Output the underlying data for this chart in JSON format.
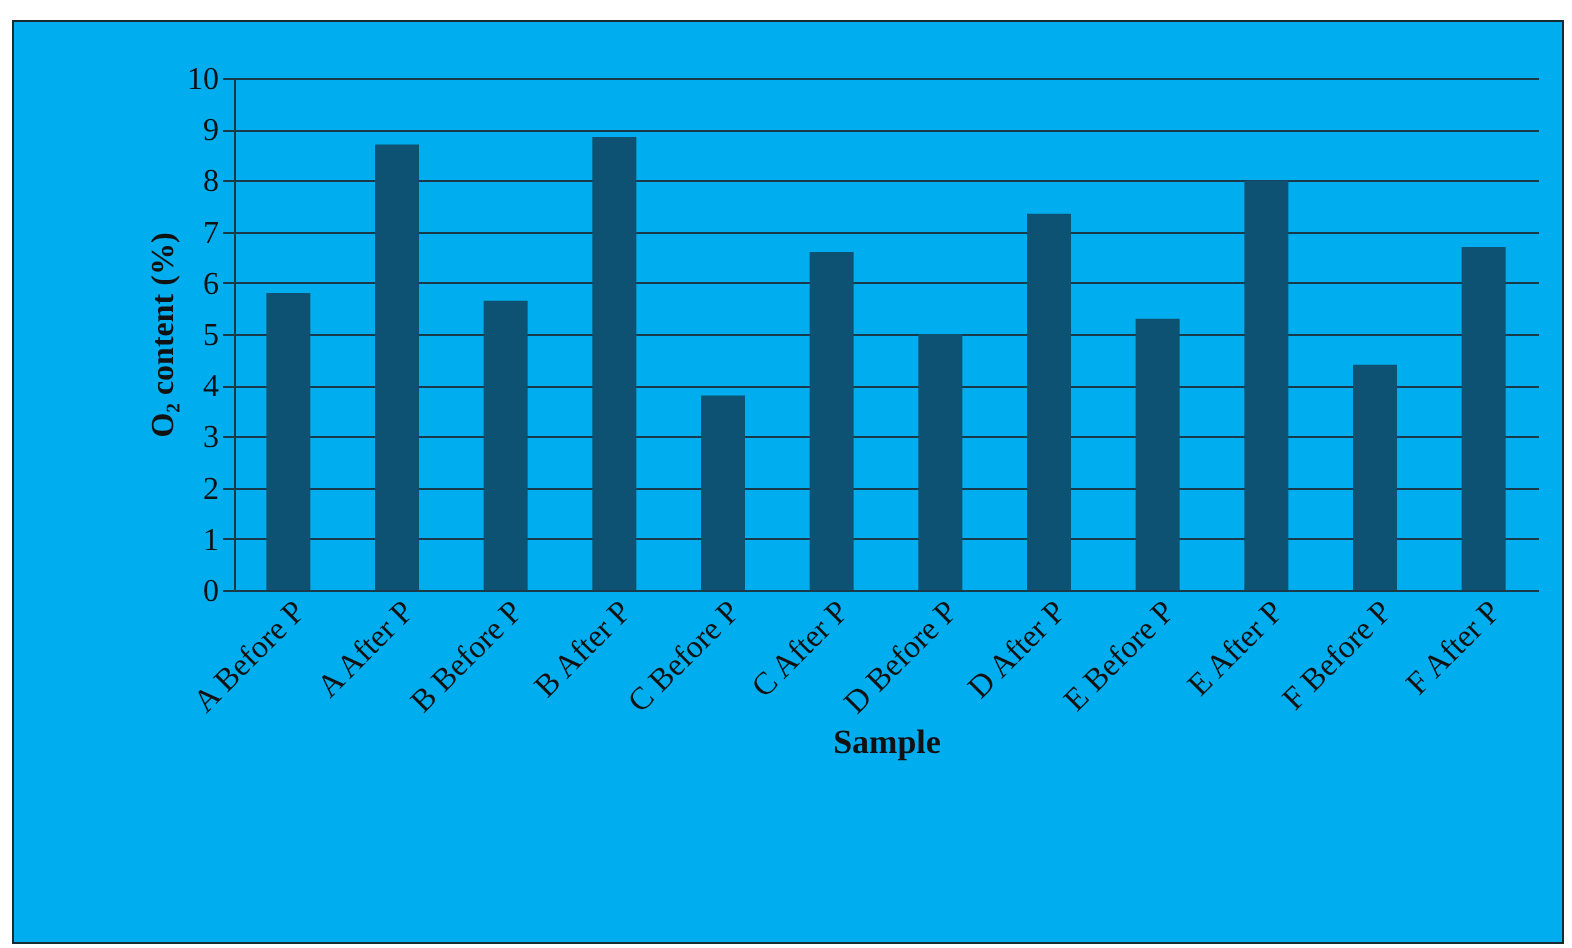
{
  "chart_data": {
    "type": "bar",
    "xlabel": "Sample",
    "ylabel": "O₂ content  (%)",
    "categories": [
      "A Before P",
      "A After P",
      "B Before P",
      "B After P",
      "C Before P",
      "C After P",
      "D Before P",
      "D After P",
      "E Before P",
      "E After P",
      "F Before P",
      "F After P"
    ],
    "values": [
      5.8,
      8.7,
      5.65,
      8.85,
      3.8,
      6.6,
      5.0,
      7.35,
      5.3,
      8.0,
      4.4,
      6.7
    ],
    "color": "#0d5272",
    "ylim": [
      0,
      10
    ],
    "yticks": [
      0,
      1,
      2,
      3,
      4,
      5,
      6,
      7,
      8,
      9,
      10
    ],
    "grid": "y"
  }
}
